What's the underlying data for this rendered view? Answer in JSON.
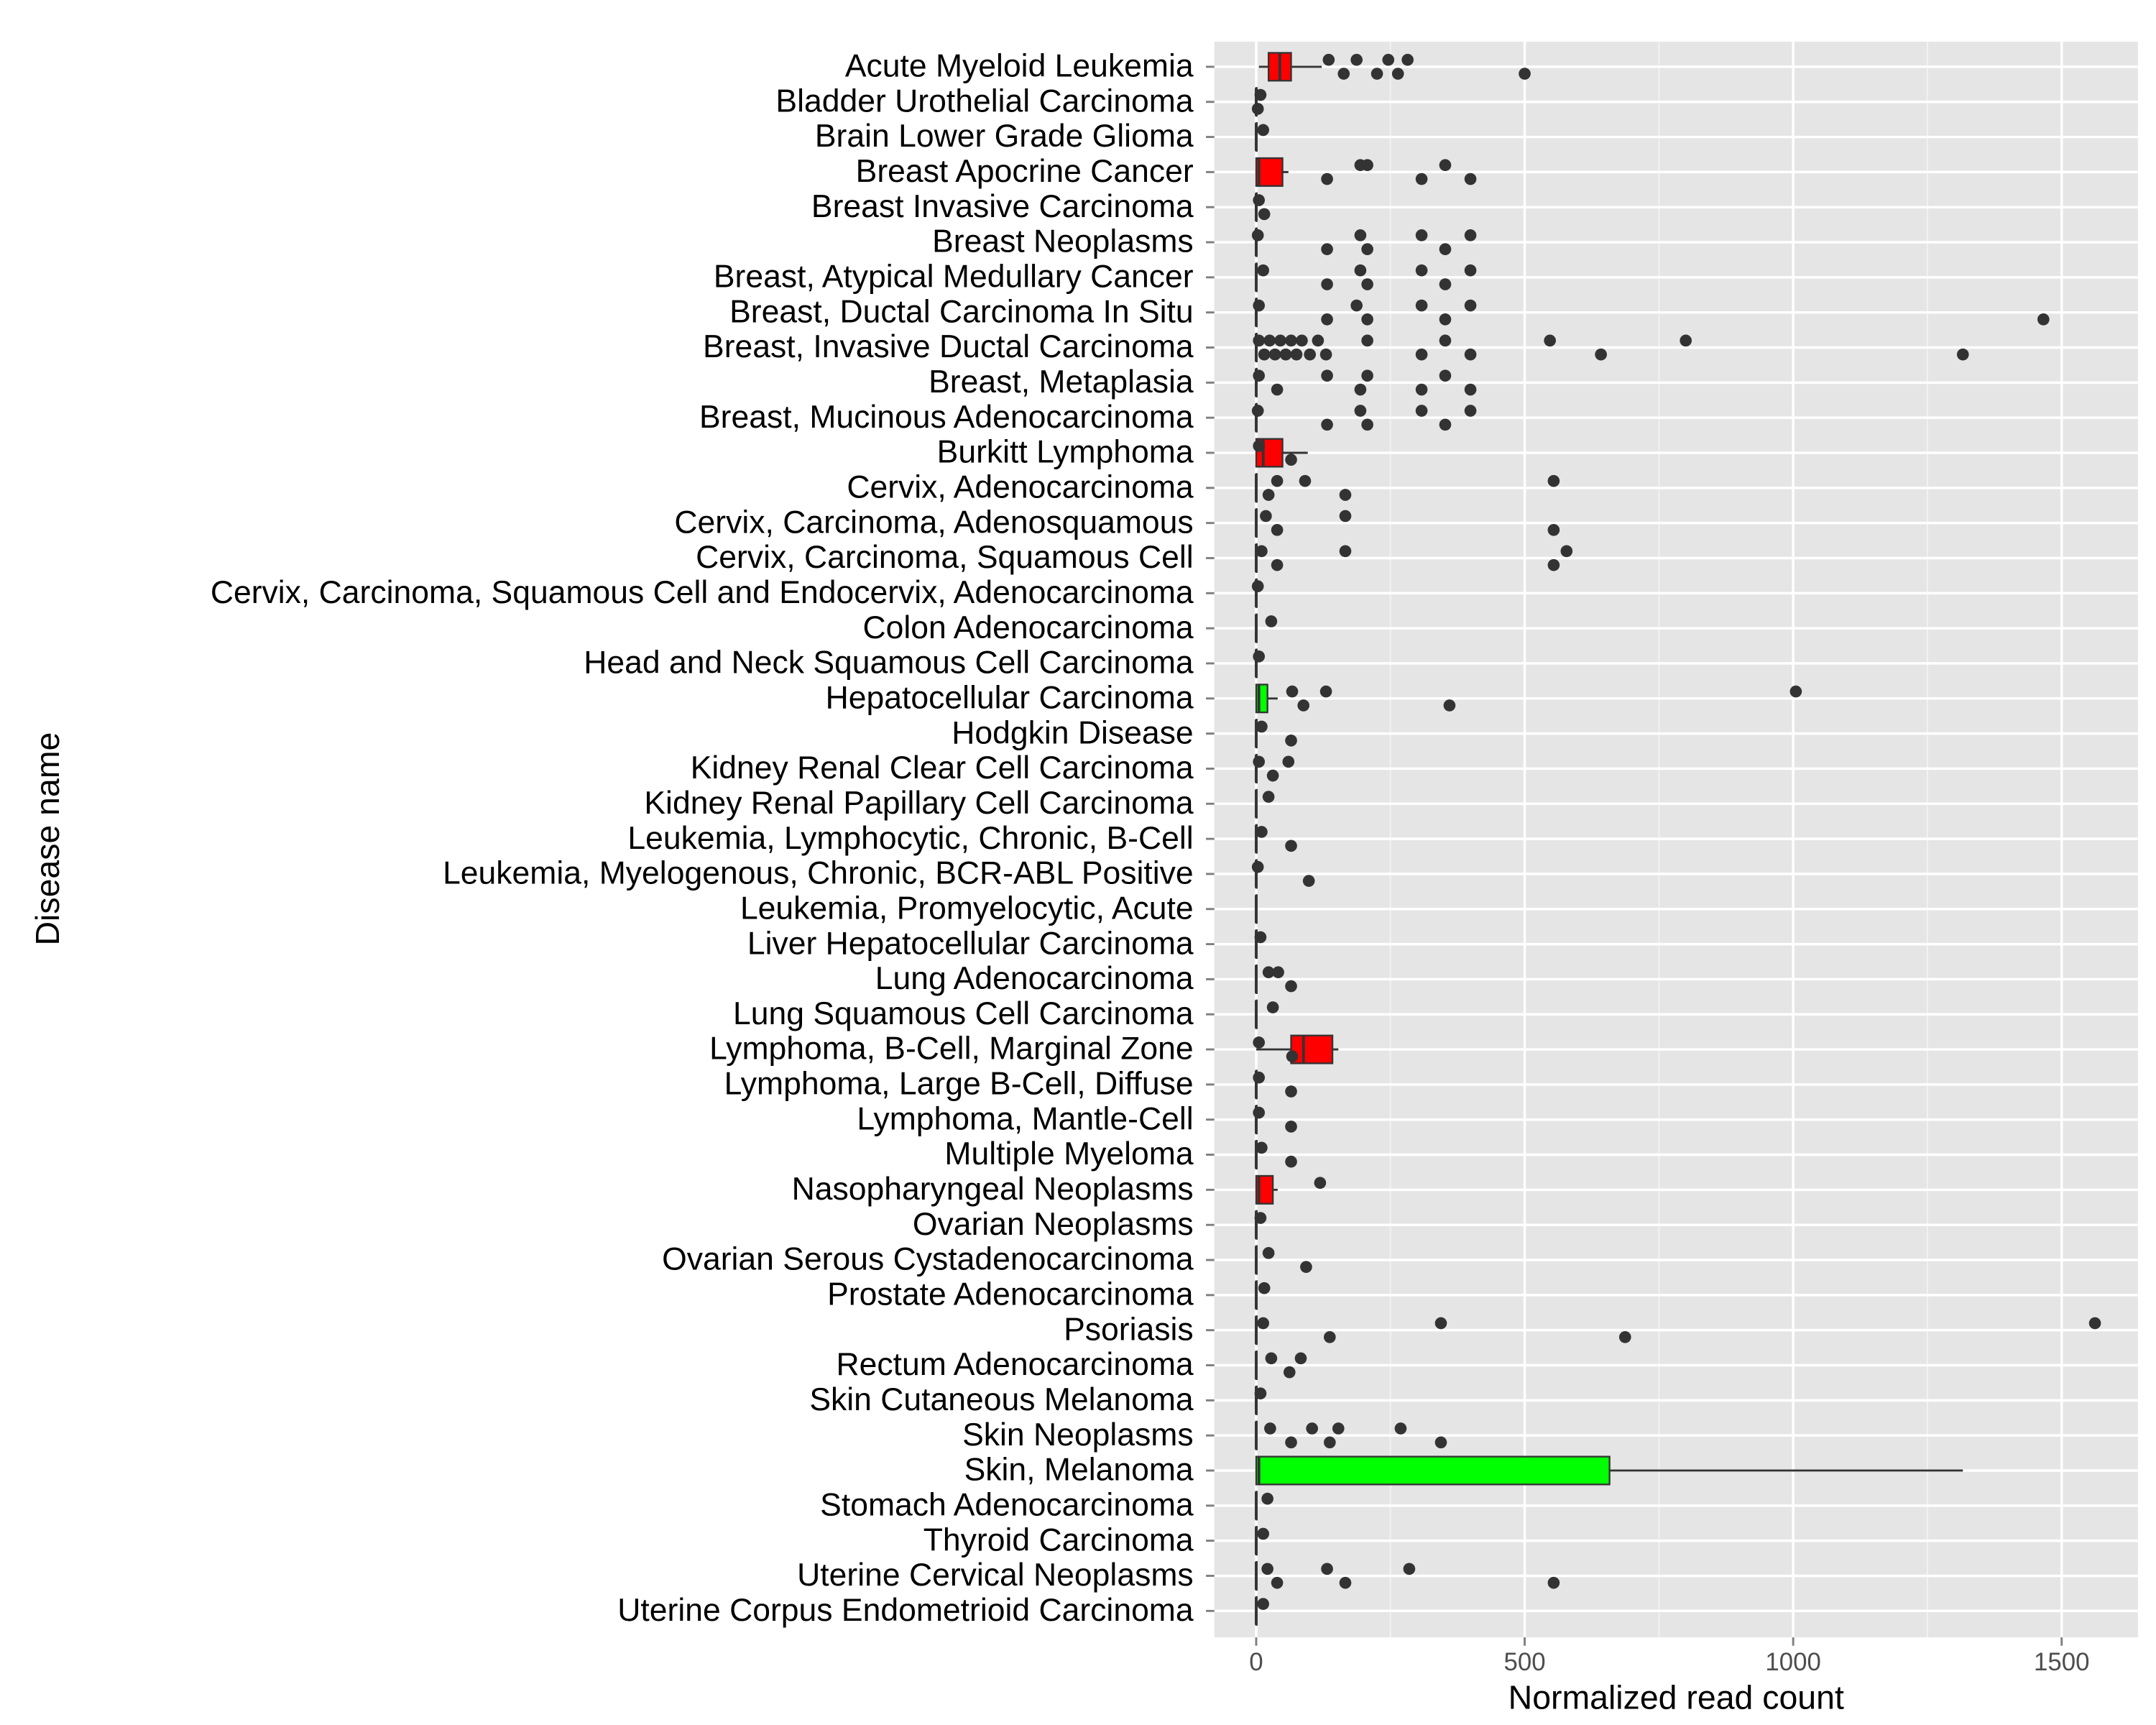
{
  "chart_data": {
    "type": "boxplot",
    "x_label": "Normalized read count",
    "y_label": "Disease name",
    "xlim": [
      -78,
      1642
    ],
    "xticks": [
      0,
      500,
      1000,
      1500
    ],
    "minor_xticks": [
      250,
      750,
      1250
    ],
    "grid": true,
    "categories": [
      "Acute Myeloid Leukemia",
      "Bladder Urothelial Carcinoma",
      "Brain Lower Grade Glioma",
      "Breast Apocrine Cancer",
      "Breast Invasive Carcinoma",
      "Breast Neoplasms",
      "Breast, Atypical Medullary Cancer",
      "Breast, Ductal Carcinoma In Situ",
      "Breast, Invasive Ductal Carcinoma",
      "Breast, Metaplasia",
      "Breast, Mucinous Adenocarcinoma",
      "Burkitt Lymphoma",
      "Cervix, Adenocarcinoma",
      "Cervix, Carcinoma, Adenosquamous",
      "Cervix, Carcinoma, Squamous Cell",
      "Cervix, Carcinoma, Squamous Cell and Endocervix, Adenocarcinoma",
      "Colon Adenocarcinoma",
      "Head and Neck Squamous Cell Carcinoma",
      "Hepatocellular Carcinoma",
      "Hodgkin Disease",
      "Kidney Renal Clear Cell Carcinoma",
      "Kidney Renal Papillary Cell Carcinoma",
      "Leukemia, Lymphocytic, Chronic, B-Cell",
      "Leukemia, Myelogenous, Chronic, BCR-ABL Positive",
      "Leukemia, Promyelocytic, Acute",
      "Liver Hepatocellular Carcinoma",
      "Lung Adenocarcinoma",
      "Lung Squamous Cell Carcinoma",
      "Lymphoma, B-Cell, Marginal Zone",
      "Lymphoma, Large B-Cell, Diffuse",
      "Lymphoma, Mantle-Cell",
      "Multiple Myeloma",
      "Nasopharyngeal Neoplasms",
      "Ovarian Neoplasms",
      "Ovarian Serous Cystadenocarcinoma",
      "Prostate Adenocarcinoma",
      "Psoriasis",
      "Rectum Adenocarcinoma",
      "Skin Cutaneous Melanoma",
      "Skin Neoplasms",
      "Skin, Melanoma",
      "Stomach Adenocarcinoma",
      "Thyroid Carcinoma",
      "Uterine Cervical Neoplasms",
      "Uterine Corpus Endometrioid Carcinoma"
    ],
    "boxes": [
      {
        "color": "#ff0000",
        "min": 5,
        "q1": 23,
        "median": 44,
        "q3": 65,
        "max": 122,
        "outliers": [
          135,
          163,
          187,
          225,
          246,
          264,
          282,
          500
        ]
      },
      {
        "color": "#ff0000",
        "min": 0,
        "q1": 0,
        "median": 0,
        "q3": 1,
        "max": 2,
        "outliers": [
          8,
          3
        ]
      },
      {
        "color": "#ff0000",
        "min": 0,
        "q1": 0,
        "median": 0,
        "q3": 1,
        "max": 2,
        "outliers": [
          13
        ]
      },
      {
        "color": "#ff0000",
        "min": 0,
        "q1": 0,
        "median": 5,
        "q3": 49,
        "max": 60,
        "outliers": [
          194,
          132,
          207,
          308,
          352,
          399
        ]
      },
      {
        "color": "#ff0000",
        "min": 0,
        "q1": 0,
        "median": 0,
        "q3": 1,
        "max": 2,
        "outliers": [
          5,
          15
        ]
      },
      {
        "color": "#ff0000",
        "min": 0,
        "q1": 0,
        "median": 0,
        "q3": 1,
        "max": 2,
        "outliers": [
          3,
          132,
          194,
          207,
          308,
          352,
          399
        ]
      },
      {
        "color": "#ff0000",
        "min": 0,
        "q1": 0,
        "median": 0,
        "q3": 1,
        "max": 2,
        "outliers": [
          13,
          132,
          194,
          207,
          308,
          352,
          399
        ]
      },
      {
        "color": "#ff0000",
        "min": 0,
        "q1": 0,
        "median": 0,
        "q3": 1,
        "max": 2,
        "outliers": [
          5,
          132,
          187,
          207,
          308,
          352,
          399,
          1466
        ]
      },
      {
        "color": "#ff0000",
        "min": 0,
        "q1": 0,
        "median": 0,
        "q3": 1,
        "max": 2,
        "outliers": [
          5,
          15,
          25,
          35,
          45,
          55,
          65,
          75,
          85,
          100,
          115,
          130,
          207,
          308,
          352,
          399,
          547,
          642,
          800,
          1316
        ]
      },
      {
        "color": "#ff0000",
        "min": 0,
        "q1": 0,
        "median": 0,
        "q3": 1,
        "max": 2,
        "outliers": [
          5,
          39,
          132,
          194,
          207,
          308,
          352,
          399
        ]
      },
      {
        "color": "#ff0000",
        "min": 0,
        "q1": 0,
        "median": 0,
        "q3": 1,
        "max": 2,
        "outliers": [
          3,
          132,
          194,
          207,
          308,
          352,
          399
        ]
      },
      {
        "color": "#ff0000",
        "min": 0,
        "q1": 0,
        "median": 13,
        "q3": 49,
        "max": 96,
        "outliers": [
          5,
          65
        ]
      },
      {
        "color": "#ff0000",
        "min": 0,
        "q1": 0,
        "median": 0,
        "q3": 1,
        "max": 2,
        "outliers": [
          91,
          23,
          39,
          166,
          554
        ]
      },
      {
        "color": "#ff0000",
        "min": 0,
        "q1": 0,
        "median": 0,
        "q3": 1,
        "max": 2,
        "outliers": [
          18,
          39,
          166,
          554
        ]
      },
      {
        "color": "#ff0000",
        "min": 0,
        "q1": 0,
        "median": 0,
        "q3": 1,
        "max": 2,
        "outliers": [
          10,
          39,
          166,
          554,
          578
        ]
      },
      {
        "color": "#ff0000",
        "min": 0,
        "q1": 0,
        "median": 0,
        "q3": 1,
        "max": 2,
        "outliers": [
          3
        ]
      },
      {
        "color": "#ff0000",
        "min": 0,
        "q1": 0,
        "median": 0,
        "q3": 1,
        "max": 2,
        "outliers": [
          28
        ]
      },
      {
        "color": "#ff0000",
        "min": 0,
        "q1": 0,
        "median": 0,
        "q3": 1,
        "max": 2,
        "outliers": [
          5
        ]
      },
      {
        "color": "#00ff00",
        "min": 0,
        "q1": 0,
        "median": 5,
        "q3": 21,
        "max": 40,
        "outliers": [
          67,
          88,
          130,
          360,
          1005
        ]
      },
      {
        "color": "#ff0000",
        "min": 0,
        "q1": 0,
        "median": 0,
        "q3": 1,
        "max": 2,
        "outliers": [
          10,
          65
        ]
      },
      {
        "color": "#ff0000",
        "min": 0,
        "q1": 0,
        "median": 0,
        "q3": 1,
        "max": 2,
        "outliers": [
          5,
          31,
          60
        ]
      },
      {
        "color": "#ff0000",
        "min": 0,
        "q1": 0,
        "median": 0,
        "q3": 1,
        "max": 2,
        "outliers": [
          23
        ]
      },
      {
        "color": "#ff0000",
        "min": 0,
        "q1": 0,
        "median": 0,
        "q3": 1,
        "max": 2,
        "outliers": [
          10,
          65
        ]
      },
      {
        "color": "#ff0000",
        "min": 0,
        "q1": 0,
        "median": 0,
        "q3": 1,
        "max": 2,
        "outliers": [
          3,
          98
        ]
      },
      {
        "color": "#ff0000",
        "min": 0,
        "q1": 0,
        "median": 0,
        "q3": 1,
        "max": 2,
        "outliers": []
      },
      {
        "color": "#ff0000",
        "min": 0,
        "q1": 0,
        "median": 0,
        "q3": 1,
        "max": 2,
        "outliers": [
          8
        ]
      },
      {
        "color": "#ff0000",
        "min": 0,
        "q1": 0,
        "median": 0,
        "q3": 1,
        "max": 2,
        "outliers": [
          23,
          65,
          41
        ]
      },
      {
        "color": "#ff0000",
        "min": 0,
        "q1": 0,
        "median": 0,
        "q3": 1,
        "max": 2,
        "outliers": [
          31
        ]
      },
      {
        "color": "#ff0000",
        "min": 0,
        "q1": 65,
        "median": 88,
        "q3": 142,
        "max": 153,
        "outliers": [
          5,
          67
        ]
      },
      {
        "color": "#ff0000",
        "min": 0,
        "q1": 0,
        "median": 0,
        "q3": 1,
        "max": 2,
        "outliers": [
          5,
          65
        ]
      },
      {
        "color": "#ff0000",
        "min": 0,
        "q1": 0,
        "median": 0,
        "q3": 1,
        "max": 2,
        "outliers": [
          5,
          65
        ]
      },
      {
        "color": "#ff0000",
        "min": 0,
        "q1": 0,
        "median": 0,
        "q3": 1,
        "max": 2,
        "outliers": [
          10,
          65
        ]
      },
      {
        "color": "#ff0000",
        "min": 0,
        "q1": 0,
        "median": 5,
        "q3": 31,
        "max": 40,
        "outliers": [
          119
        ]
      },
      {
        "color": "#ff0000",
        "min": 0,
        "q1": 0,
        "median": 0,
        "q3": 1,
        "max": 2,
        "outliers": [
          8
        ]
      },
      {
        "color": "#ff0000",
        "min": 0,
        "q1": 0,
        "median": 0,
        "q3": 1,
        "max": 2,
        "outliers": [
          23,
          93
        ]
      },
      {
        "color": "#ff0000",
        "min": 0,
        "q1": 0,
        "median": 0,
        "q3": 1,
        "max": 2,
        "outliers": [
          15
        ]
      },
      {
        "color": "#ff0000",
        "min": 0,
        "q1": 0,
        "median": 0,
        "q3": 1,
        "max": 2,
        "outliers": [
          13,
          137,
          344,
          687,
          1562
        ]
      },
      {
        "color": "#ff0000",
        "min": 0,
        "q1": 0,
        "median": 0,
        "q3": 1,
        "max": 2,
        "outliers": [
          28,
          62,
          83
        ]
      },
      {
        "color": "#ff0000",
        "min": 0,
        "q1": 0,
        "median": 0,
        "q3": 1,
        "max": 2,
        "outliers": [
          8
        ]
      },
      {
        "color": "#ff0000",
        "min": 0,
        "q1": 0,
        "median": 0,
        "q3": 1,
        "max": 2,
        "outliers": [
          26,
          65,
          153,
          137,
          269,
          344,
          104
        ]
      },
      {
        "color": "#00ff00",
        "min": 0,
        "q1": 0,
        "median": 5,
        "q3": 658,
        "max": 1316,
        "outliers": []
      },
      {
        "color": "#ff0000",
        "min": 0,
        "q1": 0,
        "median": 0,
        "q3": 1,
        "max": 2,
        "outliers": [
          21
        ]
      },
      {
        "color": "#ff0000",
        "min": 0,
        "q1": 0,
        "median": 0,
        "q3": 1,
        "max": 2,
        "outliers": [
          13
        ]
      },
      {
        "color": "#ff0000",
        "min": 0,
        "q1": 0,
        "median": 0,
        "q3": 1,
        "max": 2,
        "outliers": [
          21,
          39,
          132,
          166,
          285,
          554
        ]
      },
      {
        "color": "#ff0000",
        "min": 0,
        "q1": 0,
        "median": 0,
        "q3": 1,
        "max": 2,
        "outliers": [
          13
        ]
      }
    ]
  }
}
